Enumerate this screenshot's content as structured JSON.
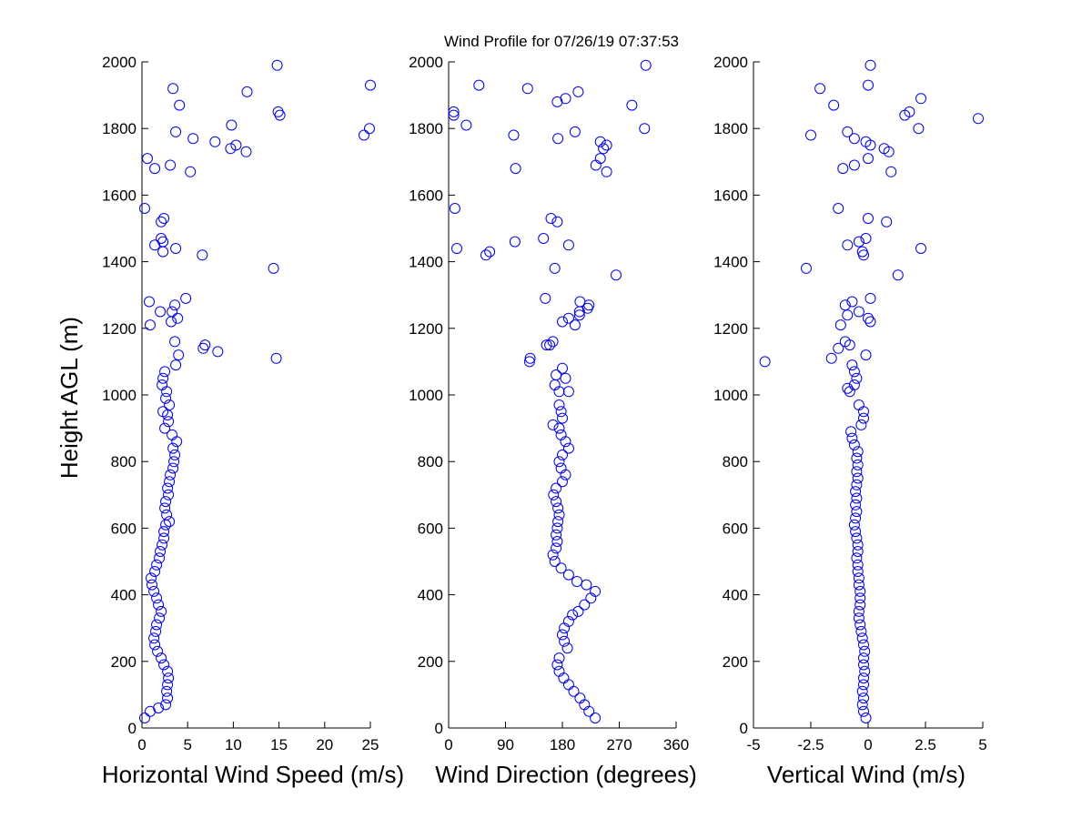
{
  "figure": {
    "title": "Wind Profile for  07/26/19 07:37:53",
    "marker_color": "#0000ff",
    "axis_color": "#000000",
    "background": "#ffffff"
  },
  "chart_data": [
    {
      "type": "scatter",
      "xlabel": "Horizontal Wind Speed (m/s)",
      "ylabel": "Height AGL (m)",
      "xlim": [
        0,
        25
      ],
      "ylim": [
        0,
        2000
      ],
      "xticks": [
        0,
        5,
        10,
        15,
        20,
        25
      ],
      "xtick_labels": [
        "0",
        "5",
        "10",
        "15",
        "20",
        "25"
      ],
      "yticks": [
        0,
        200,
        400,
        600,
        800,
        1000,
        1200,
        1400,
        1600,
        1800,
        2000
      ],
      "ytick_labels": [
        "0",
        "200",
        "400",
        "600",
        "800",
        "1000",
        "1200",
        "1400",
        "1600",
        "1800",
        "2000"
      ],
      "grid": false,
      "points": [
        [
          0.3,
          30
        ],
        [
          0.9,
          50
        ],
        [
          1.8,
          60
        ],
        [
          2.6,
          70
        ],
        [
          2.8,
          90
        ],
        [
          2.7,
          110
        ],
        [
          2.8,
          130
        ],
        [
          2.9,
          150
        ],
        [
          2.8,
          170
        ],
        [
          2.4,
          190
        ],
        [
          2.1,
          210
        ],
        [
          1.7,
          230
        ],
        [
          1.4,
          250
        ],
        [
          1.3,
          270
        ],
        [
          1.5,
          290
        ],
        [
          1.6,
          310
        ],
        [
          1.9,
          330
        ],
        [
          2.1,
          350
        ],
        [
          1.8,
          370
        ],
        [
          1.6,
          390
        ],
        [
          1.3,
          410
        ],
        [
          1.1,
          430
        ],
        [
          1.0,
          450
        ],
        [
          1.4,
          470
        ],
        [
          1.6,
          490
        ],
        [
          1.9,
          510
        ],
        [
          2.0,
          530
        ],
        [
          2.2,
          550
        ],
        [
          2.4,
          570
        ],
        [
          2.4,
          590
        ],
        [
          2.6,
          610
        ],
        [
          3.0,
          620
        ],
        [
          2.7,
          640
        ],
        [
          2.5,
          660
        ],
        [
          2.6,
          680
        ],
        [
          2.9,
          700
        ],
        [
          2.8,
          720
        ],
        [
          3.0,
          740
        ],
        [
          3.1,
          760
        ],
        [
          3.4,
          780
        ],
        [
          3.5,
          800
        ],
        [
          3.6,
          820
        ],
        [
          3.4,
          840
        ],
        [
          3.8,
          860
        ],
        [
          3.3,
          880
        ],
        [
          2.5,
          900
        ],
        [
          2.9,
          920
        ],
        [
          2.8,
          940
        ],
        [
          2.3,
          950
        ],
        [
          3.0,
          970
        ],
        [
          2.6,
          990
        ],
        [
          2.7,
          1010
        ],
        [
          2.2,
          1030
        ],
        [
          2.3,
          1050
        ],
        [
          2.5,
          1070
        ],
        [
          3.7,
          1090
        ],
        [
          14.7,
          1110
        ],
        [
          4.0,
          1120
        ],
        [
          8.3,
          1130
        ],
        [
          6.7,
          1140
        ],
        [
          6.9,
          1150
        ],
        [
          3.6,
          1160
        ],
        [
          0.9,
          1210
        ],
        [
          3.2,
          1220
        ],
        [
          3.9,
          1230
        ],
        [
          3.3,
          1250
        ],
        [
          2.0,
          1250
        ],
        [
          3.6,
          1270
        ],
        [
          0.8,
          1280
        ],
        [
          4.8,
          1290
        ],
        [
          14.4,
          1380
        ],
        [
          6.6,
          1420
        ],
        [
          2.3,
          1430
        ],
        [
          3.7,
          1440
        ],
        [
          1.4,
          1450
        ],
        [
          2.3,
          1460
        ],
        [
          2.1,
          1470
        ],
        [
          2.1,
          1520
        ],
        [
          2.4,
          1530
        ],
        [
          0.3,
          1560
        ],
        [
          5.3,
          1670
        ],
        [
          1.4,
          1680
        ],
        [
          3.1,
          1690
        ],
        [
          0.6,
          1710
        ],
        [
          11.4,
          1730
        ],
        [
          9.7,
          1740
        ],
        [
          10.3,
          1750
        ],
        [
          8.0,
          1760
        ],
        [
          5.6,
          1770
        ],
        [
          24.3,
          1780
        ],
        [
          3.7,
          1790
        ],
        [
          24.9,
          1800
        ],
        [
          9.8,
          1810
        ],
        [
          15.1,
          1840
        ],
        [
          14.9,
          1850
        ],
        [
          4.1,
          1870
        ],
        [
          11.5,
          1910
        ],
        [
          3.4,
          1920
        ],
        [
          25.0,
          1930
        ],
        [
          14.8,
          1990
        ]
      ]
    },
    {
      "type": "scatter",
      "xlabel": "Wind Direction (degrees)",
      "ylabel": "",
      "xlim": [
        0,
        360
      ],
      "ylim": [
        0,
        2000
      ],
      "xticks": [
        0,
        90,
        180,
        270,
        360
      ],
      "xtick_labels": [
        "0",
        "90",
        "180",
        "270",
        "360"
      ],
      "yticks": [
        0,
        200,
        400,
        600,
        800,
        1000,
        1200,
        1400,
        1600,
        1800,
        2000
      ],
      "ytick_labels": [
        "0",
        "200",
        "400",
        "600",
        "800",
        "1000",
        "1200",
        "1400",
        "1600",
        "1800",
        "2000"
      ],
      "grid": false,
      "points": [
        [
          232,
          30
        ],
        [
          222,
          50
        ],
        [
          215,
          70
        ],
        [
          208,
          90
        ],
        [
          198,
          110
        ],
        [
          190,
          130
        ],
        [
          182,
          150
        ],
        [
          175,
          170
        ],
        [
          172,
          190
        ],
        [
          175,
          210
        ],
        [
          188,
          240
        ],
        [
          183,
          260
        ],
        [
          180,
          280
        ],
        [
          183,
          300
        ],
        [
          190,
          320
        ],
        [
          196,
          340
        ],
        [
          205,
          350
        ],
        [
          215,
          370
        ],
        [
          225,
          390
        ],
        [
          232,
          410
        ],
        [
          218,
          430
        ],
        [
          203,
          440
        ],
        [
          190,
          460
        ],
        [
          178,
          480
        ],
        [
          168,
          500
        ],
        [
          165,
          520
        ],
        [
          170,
          540
        ],
        [
          172,
          560
        ],
        [
          170,
          580
        ],
        [
          172,
          600
        ],
        [
          173,
          620
        ],
        [
          175,
          640
        ],
        [
          173,
          660
        ],
        [
          170,
          680
        ],
        [
          166,
          700
        ],
        [
          170,
          720
        ],
        [
          180,
          740
        ],
        [
          185,
          760
        ],
        [
          178,
          780
        ],
        [
          175,
          800
        ],
        [
          180,
          820
        ],
        [
          190,
          840
        ],
        [
          185,
          860
        ],
        [
          178,
          880
        ],
        [
          175,
          900
        ],
        [
          165,
          910
        ],
        [
          180,
          930
        ],
        [
          178,
          950
        ],
        [
          175,
          970
        ],
        [
          190,
          1010
        ],
        [
          175,
          1010
        ],
        [
          168,
          1030
        ],
        [
          185,
          1050
        ],
        [
          170,
          1060
        ],
        [
          180,
          1080
        ],
        [
          128,
          1100
        ],
        [
          129,
          1110
        ],
        [
          160,
          1150
        ],
        [
          155,
          1150
        ],
        [
          165,
          1160
        ],
        [
          200,
          1210
        ],
        [
          180,
          1220
        ],
        [
          190,
          1230
        ],
        [
          207,
          1240
        ],
        [
          207,
          1250
        ],
        [
          220,
          1260
        ],
        [
          222,
          1270
        ],
        [
          208,
          1280
        ],
        [
          153,
          1290
        ],
        [
          265,
          1360
        ],
        [
          168,
          1380
        ],
        [
          59,
          1420
        ],
        [
          65,
          1430
        ],
        [
          13,
          1440
        ],
        [
          190,
          1450
        ],
        [
          105,
          1460
        ],
        [
          150,
          1470
        ],
        [
          172,
          1520
        ],
        [
          162,
          1530
        ],
        [
          10,
          1560
        ],
        [
          106,
          1680
        ],
        [
          233,
          1690
        ],
        [
          250,
          1670
        ],
        [
          240,
          1710
        ],
        [
          245,
          1740
        ],
        [
          250,
          1750
        ],
        [
          240,
          1760
        ],
        [
          173,
          1770
        ],
        [
          103,
          1780
        ],
        [
          200,
          1790
        ],
        [
          28,
          1810
        ],
        [
          310,
          1800
        ],
        [
          8,
          1840
        ],
        [
          8,
          1850
        ],
        [
          290,
          1870
        ],
        [
          185,
          1890
        ],
        [
          172,
          1880
        ],
        [
          205,
          1910
        ],
        [
          48,
          1930
        ],
        [
          125,
          1920
        ],
        [
          312,
          1990
        ]
      ]
    },
    {
      "type": "scatter",
      "xlabel": "Vertical Wind (m/s)",
      "ylabel": "",
      "xlim": [
        -5,
        5
      ],
      "ylim": [
        0,
        2000
      ],
      "xticks": [
        -5,
        -2.5,
        0,
        2.5,
        5
      ],
      "xtick_labels": [
        "-5",
        "-2.5",
        "0",
        "2.5",
        "5"
      ],
      "yticks": [
        0,
        200,
        400,
        600,
        800,
        1000,
        1200,
        1400,
        1600,
        1800,
        2000
      ],
      "ytick_labels": [
        "0",
        "200",
        "400",
        "600",
        "800",
        "1000",
        "1200",
        "1400",
        "1600",
        "1800",
        "2000"
      ],
      "grid": false,
      "points": [
        [
          -0.1,
          30
        ],
        [
          -0.2,
          50
        ],
        [
          -0.25,
          70
        ],
        [
          -0.2,
          90
        ],
        [
          -0.25,
          110
        ],
        [
          -0.2,
          130
        ],
        [
          -0.2,
          150
        ],
        [
          -0.15,
          170
        ],
        [
          -0.2,
          190
        ],
        [
          -0.2,
          210
        ],
        [
          -0.15,
          230
        ],
        [
          -0.2,
          250
        ],
        [
          -0.25,
          270
        ],
        [
          -0.3,
          290
        ],
        [
          -0.35,
          310
        ],
        [
          -0.4,
          330
        ],
        [
          -0.4,
          350
        ],
        [
          -0.35,
          370
        ],
        [
          -0.35,
          390
        ],
        [
          -0.35,
          410
        ],
        [
          -0.4,
          430
        ],
        [
          -0.4,
          450
        ],
        [
          -0.45,
          470
        ],
        [
          -0.45,
          490
        ],
        [
          -0.5,
          510
        ],
        [
          -0.45,
          530
        ],
        [
          -0.45,
          550
        ],
        [
          -0.5,
          570
        ],
        [
          -0.55,
          590
        ],
        [
          -0.6,
          610
        ],
        [
          -0.55,
          630
        ],
        [
          -0.5,
          650
        ],
        [
          -0.55,
          670
        ],
        [
          -0.5,
          690
        ],
        [
          -0.55,
          710
        ],
        [
          -0.5,
          730
        ],
        [
          -0.45,
          750
        ],
        [
          -0.5,
          770
        ],
        [
          -0.45,
          790
        ],
        [
          -0.5,
          810
        ],
        [
          -0.45,
          830
        ],
        [
          -0.6,
          850
        ],
        [
          -0.7,
          870
        ],
        [
          -0.75,
          890
        ],
        [
          -0.3,
          910
        ],
        [
          -0.2,
          930
        ],
        [
          -0.2,
          950
        ],
        [
          -0.4,
          970
        ],
        [
          -0.8,
          1010
        ],
        [
          -0.9,
          1020
        ],
        [
          -0.6,
          1030
        ],
        [
          -0.5,
          1050
        ],
        [
          -0.6,
          1070
        ],
        [
          -0.7,
          1090
        ],
        [
          -4.5,
          1100
        ],
        [
          -1.6,
          1110
        ],
        [
          -0.1,
          1120
        ],
        [
          -1.3,
          1140
        ],
        [
          -0.8,
          1150
        ],
        [
          -1.0,
          1160
        ],
        [
          -1.2,
          1210
        ],
        [
          0.1,
          1220
        ],
        [
          0.0,
          1230
        ],
        [
          -0.9,
          1240
        ],
        [
          -0.4,
          1250
        ],
        [
          -1.0,
          1270
        ],
        [
          -0.7,
          1280
        ],
        [
          0.1,
          1290
        ],
        [
          1.3,
          1360
        ],
        [
          -2.7,
          1380
        ],
        [
          -0.2,
          1420
        ],
        [
          -0.25,
          1430
        ],
        [
          2.3,
          1440
        ],
        [
          -0.9,
          1450
        ],
        [
          -0.4,
          1460
        ],
        [
          -0.1,
          1470
        ],
        [
          0.0,
          1530
        ],
        [
          0.8,
          1520
        ],
        [
          -1.3,
          1560
        ],
        [
          -1.1,
          1680
        ],
        [
          -0.6,
          1690
        ],
        [
          1.0,
          1670
        ],
        [
          0.0,
          1710
        ],
        [
          0.9,
          1730
        ],
        [
          0.7,
          1740
        ],
        [
          0.1,
          1750
        ],
        [
          -0.1,
          1760
        ],
        [
          -0.6,
          1770
        ],
        [
          -2.5,
          1780
        ],
        [
          -0.9,
          1790
        ],
        [
          2.2,
          1800
        ],
        [
          4.8,
          1830
        ],
        [
          1.6,
          1840
        ],
        [
          1.8,
          1850
        ],
        [
          -1.5,
          1870
        ],
        [
          2.3,
          1890
        ],
        [
          -2.1,
          1920
        ],
        [
          0.0,
          1930
        ],
        [
          0.1,
          1990
        ]
      ]
    }
  ]
}
